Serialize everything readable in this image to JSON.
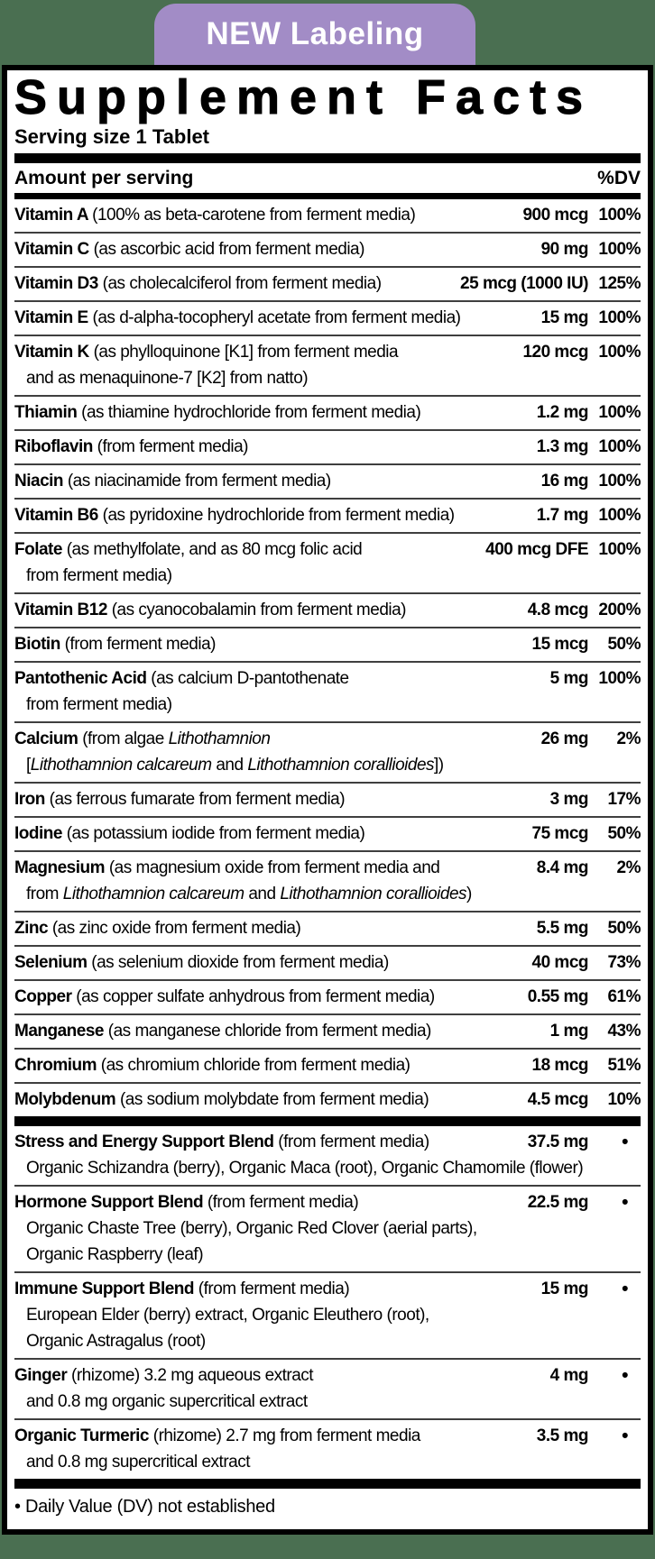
{
  "colors": {
    "background_green": "#4a6f51",
    "badge_purple": "#a28cc6",
    "panel_bg": "#ffffff",
    "rule_dark": "#3f3f3f",
    "bar_black": "#000000"
  },
  "badge": {
    "label": "NEW Labeling"
  },
  "panel": {
    "title": "Supplement Facts",
    "serving_size": "Serving size 1 Tablet"
  },
  "table": {
    "header": {
      "left": "Amount per serving",
      "right": "%DV"
    },
    "rows": [
      {
        "line": [
          {
            "t": "Vitamin A ",
            "b": true
          },
          {
            "t": "(100% as beta-carotene from ferment media)"
          }
        ],
        "amount": "900 mcg",
        "dv": "100%"
      },
      {
        "line": [
          {
            "t": "Vitamin C ",
            "b": true
          },
          {
            "t": "(as ascorbic acid from ferment media)"
          }
        ],
        "amount": "90 mg",
        "dv": "100%"
      },
      {
        "line": [
          {
            "t": "Vitamin D3 ",
            "b": true
          },
          {
            "t": "(as cholecalciferol from ferment media)"
          }
        ],
        "amount": "25 mcg (1000 IU)",
        "dv": "125%"
      },
      {
        "line": [
          {
            "t": "Vitamin E ",
            "b": true
          },
          {
            "t": "(as d-alpha-tocopheryl acetate from ferment media)"
          }
        ],
        "amount": "15 mg",
        "dv": "100%"
      },
      {
        "line": [
          {
            "t": "Vitamin K ",
            "b": true
          },
          {
            "t": "(as phylloquinone [K1] from ferment media"
          }
        ],
        "amount": "120 mcg",
        "dv": "100%",
        "sub": [
          [
            {
              "t": "and as menaquinone-7 [K2] from natto)"
            }
          ]
        ]
      },
      {
        "line": [
          {
            "t": "Thiamin ",
            "b": true
          },
          {
            "t": "(as thiamine hydrochloride from ferment media)"
          }
        ],
        "amount": "1.2 mg",
        "dv": "100%"
      },
      {
        "line": [
          {
            "t": "Riboflavin ",
            "b": true
          },
          {
            "t": "(from ferment media)"
          }
        ],
        "amount": "1.3 mg",
        "dv": "100%"
      },
      {
        "line": [
          {
            "t": "Niacin ",
            "b": true
          },
          {
            "t": "(as niacinamide from ferment media)"
          }
        ],
        "amount": "16 mg",
        "dv": "100%"
      },
      {
        "line": [
          {
            "t": "Vitamin B6 ",
            "b": true
          },
          {
            "t": "(as pyridoxine hydrochloride from ferment media)"
          }
        ],
        "amount": "1.7 mg",
        "dv": "100%"
      },
      {
        "line": [
          {
            "t": "Folate ",
            "b": true
          },
          {
            "t": "(as methylfolate, and as 80 mcg folic acid"
          }
        ],
        "amount": "400 mcg DFE",
        "dv": "100%",
        "sub": [
          [
            {
              "t": "from ferment media)"
            }
          ]
        ]
      },
      {
        "line": [
          {
            "t": "Vitamin B12 ",
            "b": true
          },
          {
            "t": "(as cyanocobalamin from ferment media)"
          }
        ],
        "amount": "4.8 mcg",
        "dv": "200%"
      },
      {
        "line": [
          {
            "t": "Biotin ",
            "b": true
          },
          {
            "t": "(from ferment media)"
          }
        ],
        "amount": "15 mcg",
        "dv": "50%"
      },
      {
        "line": [
          {
            "t": "Pantothenic Acid ",
            "b": true
          },
          {
            "t": "(as calcium D-pantothenate"
          }
        ],
        "amount": "5 mg",
        "dv": "100%",
        "sub": [
          [
            {
              "t": "from ferment media)"
            }
          ]
        ]
      },
      {
        "line": [
          {
            "t": "Calcium ",
            "b": true
          },
          {
            "t": "(from algae "
          },
          {
            "t": "Lithothamnion",
            "i": true
          }
        ],
        "amount": "26 mg",
        "dv": "2%",
        "sub": [
          [
            {
              "t": "["
            },
            {
              "t": "Lithothamnion calcareum",
              "i": true
            },
            {
              "t": " and "
            },
            {
              "t": "Lithothamnion corallioides",
              "i": true
            },
            {
              "t": "])"
            }
          ]
        ]
      },
      {
        "line": [
          {
            "t": "Iron ",
            "b": true
          },
          {
            "t": "(as ferrous fumarate from ferment media)"
          }
        ],
        "amount": "3 mg",
        "dv": "17%"
      },
      {
        "line": [
          {
            "t": "Iodine ",
            "b": true
          },
          {
            "t": "(as potassium iodide from ferment media)"
          }
        ],
        "amount": "75 mcg",
        "dv": "50%"
      },
      {
        "line": [
          {
            "t": "Magnesium ",
            "b": true
          },
          {
            "t": "(as magnesium oxide from ferment media and"
          }
        ],
        "amount": "8.4 mg",
        "dv": "2%",
        "sub": [
          [
            {
              "t": "from "
            },
            {
              "t": "Lithothamnion calcareum",
              "i": true
            },
            {
              "t": " and "
            },
            {
              "t": "Lithothamnion corallioides",
              "i": true
            },
            {
              "t": ")"
            }
          ]
        ]
      },
      {
        "line": [
          {
            "t": "Zinc ",
            "b": true
          },
          {
            "t": "(as zinc oxide from ferment media)"
          }
        ],
        "amount": "5.5 mg",
        "dv": "50%"
      },
      {
        "line": [
          {
            "t": "Selenium ",
            "b": true
          },
          {
            "t": "(as selenium dioxide from ferment media)"
          }
        ],
        "amount": "40 mcg",
        "dv": "73%"
      },
      {
        "line": [
          {
            "t": "Copper ",
            "b": true
          },
          {
            "t": "(as copper sulfate anhydrous from ferment media)"
          }
        ],
        "amount": "0.55 mg",
        "dv": "61%"
      },
      {
        "line": [
          {
            "t": "Manganese ",
            "b": true
          },
          {
            "t": "(as manganese chloride from ferment media)"
          }
        ],
        "amount": "1 mg",
        "dv": "43%"
      },
      {
        "line": [
          {
            "t": "Chromium ",
            "b": true
          },
          {
            "t": "(as chromium chloride from ferment media)"
          }
        ],
        "amount": "18 mcg",
        "dv": "51%"
      },
      {
        "line": [
          {
            "t": "Molybdenum ",
            "b": true
          },
          {
            "t": "(as sodium molybdate from ferment media)"
          }
        ],
        "amount": "4.5 mcg",
        "dv": "10%"
      },
      {
        "thick_before": true,
        "line": [
          {
            "t": "Stress and Energy Support Blend ",
            "b": true
          },
          {
            "t": "(from ferment media)"
          }
        ],
        "amount": "37.5 mg",
        "dv": "•",
        "sub": [
          [
            {
              "t": "Organic Schizandra (berry), Organic Maca (root), Organic Chamomile (flower)"
            }
          ]
        ]
      },
      {
        "line": [
          {
            "t": "Hormone Support Blend ",
            "b": true
          },
          {
            "t": "(from ferment media)"
          }
        ],
        "amount": "22.5 mg",
        "dv": "•",
        "sub": [
          [
            {
              "t": "Organic Chaste Tree (berry), Organic Red Clover (aerial parts),"
            }
          ],
          [
            {
              "t": "Organic Raspberry (leaf)"
            }
          ]
        ]
      },
      {
        "line": [
          {
            "t": "Immune Support Blend ",
            "b": true
          },
          {
            "t": "(from ferment media)"
          }
        ],
        "amount": "15 mg",
        "dv": "•",
        "sub": [
          [
            {
              "t": "European Elder (berry) extract, Organic Eleuthero (root),"
            }
          ],
          [
            {
              "t": "Organic Astragalus (root)"
            }
          ]
        ]
      },
      {
        "line": [
          {
            "t": "Ginger ",
            "b": true
          },
          {
            "t": "(rhizome) 3.2 mg aqueous extract"
          }
        ],
        "amount": "4 mg",
        "dv": "•",
        "sub": [
          [
            {
              "t": "and 0.8 mg organic supercritical extract"
            }
          ]
        ]
      },
      {
        "line": [
          {
            "t": "Organic Turmeric ",
            "b": true
          },
          {
            "t": "(rhizome) 2.7 mg from ferment media"
          }
        ],
        "amount": "3.5 mg",
        "dv": "•",
        "sub": [
          [
            {
              "t": "and 0.8 mg supercritical extract"
            }
          ]
        ]
      }
    ]
  },
  "footer": {
    "note": "• Daily Value (DV) not established"
  }
}
